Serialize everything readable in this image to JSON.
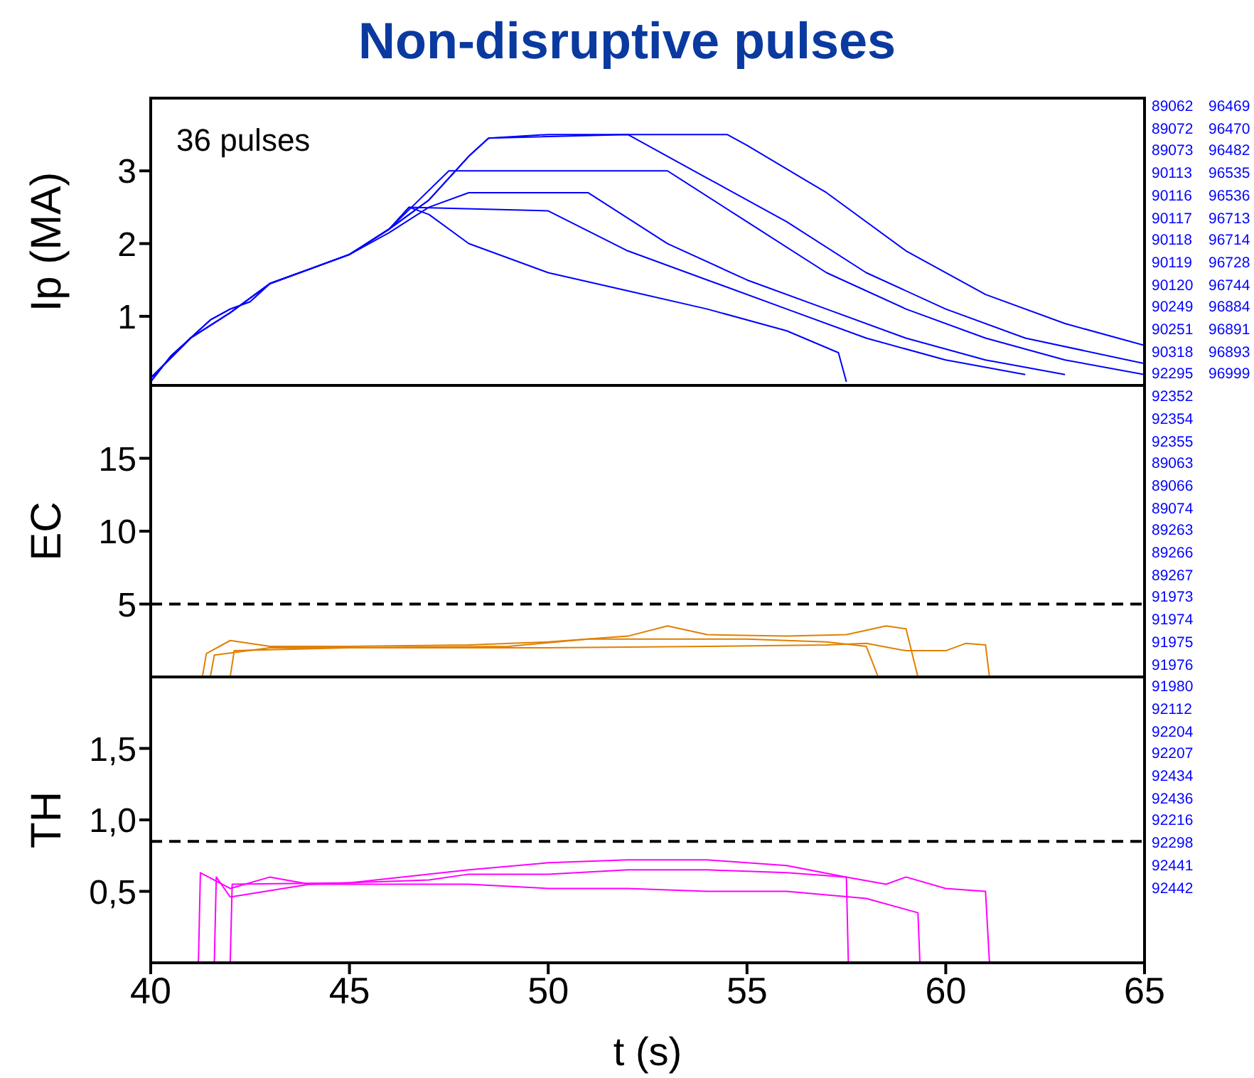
{
  "chart_data": [
    {
      "type": "line",
      "title": "Non-disruptive pulses",
      "ylabel": "Ip (MA)",
      "xlim": [
        40,
        65
      ],
      "xticks": [
        40,
        45,
        50,
        55,
        60,
        65
      ],
      "ylim": [
        0.05,
        4
      ],
      "yticks": [
        1,
        2,
        3
      ],
      "tick_labels": "y",
      "grid": false,
      "legend": false,
      "marker": "none",
      "line_style": "solid",
      "annotations": [
        "36 pulses",
        "89062",
        "89072",
        "89073",
        "90113",
        "90116",
        "90117",
        "90118",
        "90119",
        "90120",
        "90249",
        "90251",
        "90318",
        "92295",
        "92352",
        "92354",
        "92355",
        "89063",
        "89066",
        "89074",
        "89263",
        "89266",
        "89267",
        "91973",
        "91974",
        "91975",
        "91976",
        "91980",
        "92112",
        "92204",
        "92207",
        "92434",
        "92436",
        "92216",
        "92298",
        "92441",
        "92442",
        "96469",
        "96470",
        "96482",
        "96535",
        "96536",
        "96713",
        "96714",
        "96728",
        "96744",
        "96884",
        "96891",
        "96893",
        "96999"
      ],
      "series": [
        {
          "color": "#0000ff",
          "x": [
            40,
            40.5,
            41,
            41.5,
            42,
            42.5,
            43,
            44,
            45,
            46,
            47,
            47.5,
            48,
            48.5,
            50,
            53,
            54.5,
            55,
            57,
            59,
            61,
            63,
            65
          ],
          "values": [
            0.1,
            0.45,
            0.7,
            0.95,
            1.1,
            1.2,
            1.45,
            1.65,
            1.85,
            2.2,
            2.6,
            2.9,
            3.2,
            3.45,
            3.5,
            3.5,
            3.5,
            3.35,
            2.7,
            1.9,
            1.3,
            0.9,
            0.6
          ]
        },
        {
          "color": "#0000ff",
          "x": [
            40,
            40.5,
            41,
            41.5,
            42,
            42.5,
            43,
            44,
            45,
            46,
            47,
            47.5,
            48,
            48.5,
            52,
            54,
            56,
            58,
            60,
            62,
            65
          ],
          "values": [
            0.1,
            0.45,
            0.7,
            0.95,
            1.1,
            1.2,
            1.45,
            1.65,
            1.85,
            2.2,
            2.6,
            2.9,
            3.2,
            3.45,
            3.5,
            2.9,
            2.3,
            1.6,
            1.1,
            0.7,
            0.35
          ]
        },
        {
          "color": "#0000ff",
          "x": [
            40,
            41,
            42,
            43,
            44,
            45,
            46,
            47.5,
            53,
            55,
            57,
            59,
            61,
            63,
            65
          ],
          "values": [
            0.15,
            0.7,
            1.05,
            1.45,
            1.65,
            1.85,
            2.2,
            3.0,
            3.0,
            2.3,
            1.6,
            1.1,
            0.7,
            0.4,
            0.2
          ]
        },
        {
          "color": "#0000ff",
          "x": [
            40,
            41,
            42,
            43,
            44,
            45,
            46,
            47,
            48,
            51,
            53,
            55,
            57,
            59,
            61,
            63
          ],
          "values": [
            0.15,
            0.7,
            1.05,
            1.45,
            1.65,
            1.85,
            2.15,
            2.5,
            2.7,
            2.7,
            2.0,
            1.5,
            1.1,
            0.7,
            0.4,
            0.2
          ]
        },
        {
          "color": "#0000ff",
          "x": [
            40,
            41,
            42,
            43,
            44,
            45,
            46,
            46.5,
            50,
            52,
            54,
            56,
            58,
            60,
            62
          ],
          "values": [
            0.15,
            0.7,
            1.05,
            1.45,
            1.65,
            1.85,
            2.2,
            2.5,
            2.45,
            1.9,
            1.5,
            1.1,
            0.7,
            0.4,
            0.2
          ]
        },
        {
          "color": "#0000ff",
          "x": [
            40,
            41,
            42,
            43,
            44,
            45,
            46,
            46.5,
            47,
            48,
            50,
            52,
            54,
            56,
            57.3,
            57.5
          ],
          "values": [
            0.15,
            0.7,
            1.05,
            1.45,
            1.65,
            1.85,
            2.2,
            2.5,
            2.4,
            2.0,
            1.6,
            1.35,
            1.1,
            0.8,
            0.5,
            0.1
          ]
        }
      ]
    },
    {
      "type": "line",
      "ylabel": "EC",
      "xlim": [
        40,
        65
      ],
      "xticks": [
        40,
        45,
        50,
        55,
        60,
        65
      ],
      "ylim": [
        0,
        20
      ],
      "yticks": [
        5,
        10,
        15
      ],
      "tick_labels": "y",
      "grid": false,
      "legend": false,
      "marker": "none",
      "line_style": "solid",
      "ref_lines": [
        {
          "axis": "y",
          "value": 5,
          "color": "#000000",
          "line_style": "dashed"
        }
      ],
      "series": [
        {
          "color": "#e08000",
          "x": [
            41.3,
            41.4,
            42,
            43,
            45,
            48,
            50,
            52,
            53,
            54,
            56,
            57.5,
            58.5,
            59,
            59.3
          ],
          "values": [
            0,
            1.6,
            2.5,
            2.1,
            2.1,
            2.2,
            2.4,
            2.8,
            3.5,
            2.9,
            2.8,
            2.9,
            3.5,
            3.3,
            0
          ]
        },
        {
          "color": "#e08000",
          "x": [
            41.5,
            41.6,
            43,
            46,
            50,
            54,
            57,
            58,
            59,
            60,
            60.5,
            61,
            61.1
          ],
          "values": [
            0,
            1.5,
            2.0,
            2.0,
            2.0,
            2.1,
            2.2,
            2.3,
            1.8,
            1.8,
            2.3,
            2.2,
            0
          ]
        },
        {
          "color": "#e08000",
          "x": [
            42,
            42.1,
            45,
            49,
            51,
            55,
            57,
            58,
            58.3
          ],
          "values": [
            0,
            1.8,
            2.0,
            2.1,
            2.6,
            2.6,
            2.4,
            2.1,
            0
          ]
        }
      ]
    },
    {
      "type": "line",
      "ylabel": "TH",
      "xlabel": "t (s)",
      "xlim": [
        40,
        65
      ],
      "xticks": [
        40,
        45,
        50,
        55,
        60,
        65
      ],
      "ylim": [
        0,
        2
      ],
      "yticks": [
        {
          "value": 0.5,
          "label": "0,5"
        },
        {
          "value": 1,
          "label": "1,0"
        },
        {
          "value": 1.5,
          "label": "1,5"
        }
      ],
      "grid": false,
      "legend": false,
      "marker": "none",
      "line_style": "solid",
      "ref_lines": [
        {
          "axis": "y",
          "value": 0.85,
          "color": "#000000",
          "line_style": "dashed"
        }
      ],
      "series": [
        {
          "color": "#ff00ff",
          "x": [
            41.2,
            41.25,
            42,
            43,
            44,
            46,
            47,
            48,
            50,
            52,
            54,
            56,
            57.5,
            58.5,
            59,
            60,
            61,
            61.1
          ],
          "values": [
            0,
            0.63,
            0.52,
            0.6,
            0.55,
            0.57,
            0.58,
            0.62,
            0.62,
            0.65,
            0.65,
            0.63,
            0.6,
            0.55,
            0.6,
            0.52,
            0.5,
            0
          ]
        },
        {
          "color": "#ff00ff",
          "x": [
            41.6,
            41.65,
            42,
            44,
            46,
            48,
            50,
            52,
            54,
            56,
            58,
            59.3,
            59.35
          ],
          "values": [
            0,
            0.6,
            0.46,
            0.55,
            0.55,
            0.55,
            0.52,
            0.52,
            0.5,
            0.5,
            0.45,
            0.35,
            0
          ]
        },
        {
          "color": "#ff00ff",
          "x": [
            42,
            42.05,
            45,
            48,
            50,
            52,
            54,
            56,
            57.5,
            57.55
          ],
          "values": [
            0,
            0.55,
            0.56,
            0.65,
            0.7,
            0.72,
            0.72,
            0.68,
            0.6,
            0
          ]
        }
      ]
    }
  ]
}
